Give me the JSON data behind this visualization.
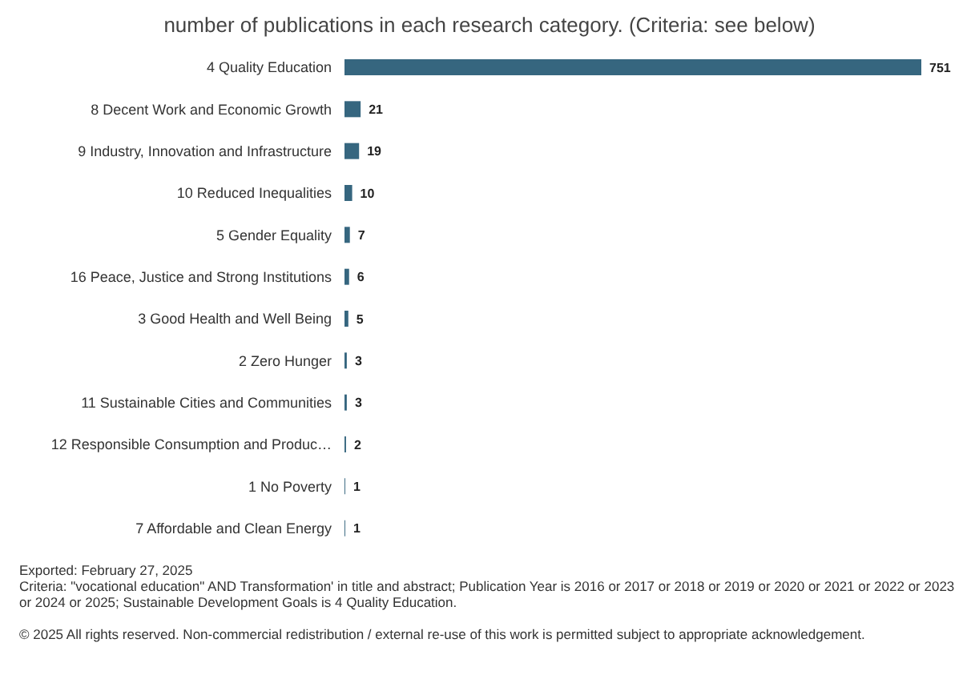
{
  "chart_data": {
    "type": "bar",
    "orientation": "horizontal",
    "title": "number of publications in each research category. (Criteria: see below)",
    "categories": [
      "4 Quality Education",
      "8 Decent Work and Economic Growth",
      "9 Industry, Innovation and Infrastructure",
      "10 Reduced Inequalities",
      "5 Gender Equality",
      "16 Peace, Justice and Strong Institutions",
      "3 Good Health and Well Being",
      "2 Zero Hunger",
      "11 Sustainable Cities and Communities",
      "12 Responsible Consumption and Produc…",
      "1 No Poverty",
      "7 Affordable and Clean Energy"
    ],
    "values": [
      751,
      21,
      19,
      10,
      7,
      6,
      5,
      3,
      3,
      2,
      1,
      1
    ],
    "color": "#36667f",
    "tick_labels": "y",
    "data_labels": true,
    "grid": false,
    "legend": false,
    "annotations": [
      "Exported: February 27, 2025",
      "Criteria: \"vocational education\" AND Transformation' in title and abstract; Publication Year is 2016 or 2017 or 2018 or 2019 or 2020 or 2021 or 2022 or 2023 or 2024 or 2025; Sustainable Development Goals is 4 Quality Education.",
      "© 2025 All rights reserved. Non-commercial redistribution / external re-use of this work is permitted subject to appropriate acknowledgement."
    ]
  }
}
